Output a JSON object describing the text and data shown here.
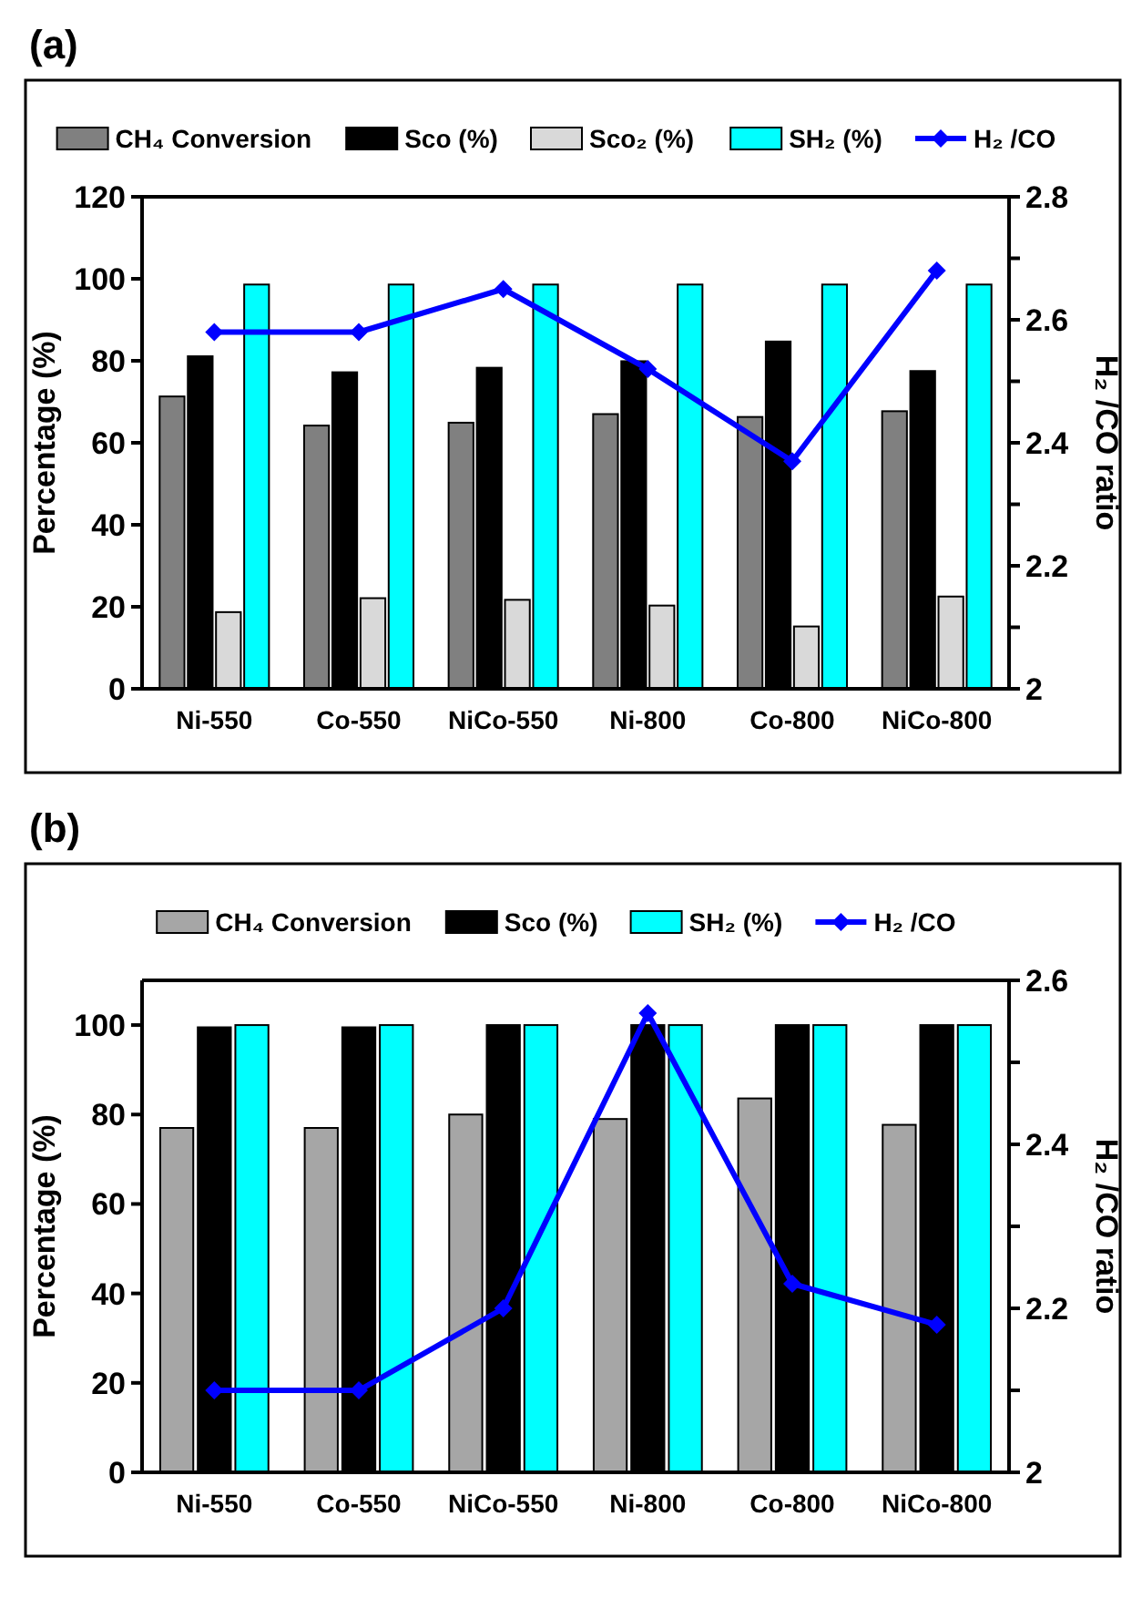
{
  "chart_data": [
    {
      "type": "bar",
      "title": "(a)",
      "categories": [
        "Ni-550",
        "Co-550",
        "NiCo-550",
        "Ni-800",
        "Co-800",
        "NiCo-800"
      ],
      "ylabel": "Percentage (%)",
      "y2label": "H₂ /CO ratio",
      "ylim": [
        0,
        120
      ],
      "yticks": [
        0,
        20,
        40,
        60,
        80,
        100,
        120
      ],
      "y2lim": [
        2,
        2.8
      ],
      "y2ticks": [
        2,
        {
          "value": 2.1,
          "label": null
        },
        2.2,
        {
          "value": 2.3,
          "label": null
        },
        2.4,
        {
          "value": 2.5,
          "label": null
        },
        2.6,
        {
          "value": 2.7,
          "label": null
        },
        2.8
      ],
      "grid": false,
      "legend": "top",
      "series": [
        {
          "name": "CH₄ Conversion",
          "color": "#808080",
          "values": [
            71.3,
            64.2,
            64.9,
            67,
            66.3,
            67.7
          ]
        },
        {
          "name": "Sco (%)",
          "color": "#000000",
          "values": [
            81.1,
            77.2,
            78.3,
            79.9,
            84.7,
            77.5
          ]
        },
        {
          "name": "Sco₂ (%)",
          "color": "#d9d9d9",
          "values": [
            18.7,
            22.1,
            21.7,
            20.3,
            15.2,
            22.5
          ]
        },
        {
          "name": "SH₂ (%)",
          "color": "#00ffff",
          "values": [
            98.6,
            98.6,
            98.6,
            98.6,
            98.6,
            98.6
          ]
        },
        {
          "name": "H₂ /CO",
          "type": "line",
          "axis": "y2",
          "marker": "diamond",
          "color": "#0000ff",
          "values": [
            2.58,
            2.58,
            2.65,
            2.52,
            2.37,
            2.68
          ]
        }
      ]
    },
    {
      "type": "bar",
      "title": "(b)",
      "categories": [
        "Ni-550",
        "Co-550",
        "NiCo-550",
        "Ni-800",
        "Co-800",
        "NiCo-800"
      ],
      "ylabel": "Percentage (%)",
      "y2label": "H₂ /CO ratio",
      "ylim": [
        0,
        110
      ],
      "yticks": [
        0,
        20,
        40,
        60,
        80,
        100
      ],
      "y2lim": [
        2,
        2.6
      ],
      "y2ticks": [
        2,
        {
          "value": 2.1,
          "label": null
        },
        2.2,
        {
          "value": 2.3,
          "label": null
        },
        2.4,
        {
          "value": 2.5,
          "label": null
        },
        2.6
      ],
      "grid": false,
      "legend": "top",
      "series": [
        {
          "name": "CH₄ Conversion",
          "color": "#a6a6a6",
          "values": [
            77,
            77,
            80,
            79,
            83.6,
            77.7
          ]
        },
        {
          "name": "Sco (%)",
          "color": "#000000",
          "values": [
            99.5,
            99.5,
            100,
            100,
            100,
            100
          ]
        },
        {
          "name": "SH₂ (%)",
          "color": "#00ffff",
          "values": [
            100,
            100,
            100,
            100,
            100,
            100
          ]
        },
        {
          "name": "H₂ /CO",
          "type": "line",
          "axis": "y2",
          "marker": "diamond",
          "color": "#0000ff",
          "values": [
            2.1,
            2.1,
            2.2,
            2.56,
            2.23,
            2.18
          ]
        }
      ]
    }
  ]
}
